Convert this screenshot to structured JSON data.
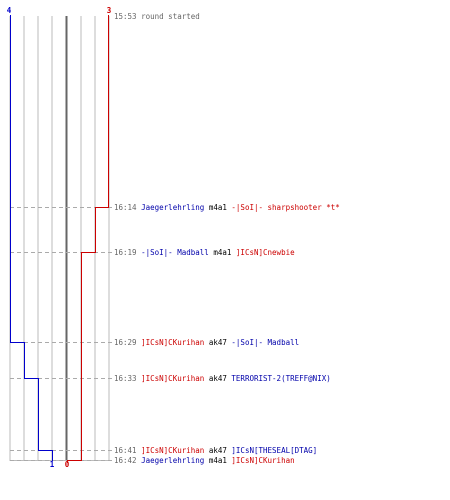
{
  "colors": {
    "team_blue": "#0000cc",
    "team_red": "#cc0000",
    "grid": "#bbbbbb",
    "midline": "#666666",
    "dash": "#aaaaaa"
  },
  "scores": {
    "blue_start": "4",
    "red_start": "3",
    "blue_end": "1",
    "red_end": "0"
  },
  "events": [
    {
      "time": "15:53",
      "note": "round started"
    },
    {
      "time": "16:14",
      "killer": "Jaegerlehrling",
      "killer_team": "blue",
      "weapon": "m4a1",
      "victim": "-|SoI|- sharpshooter *t*",
      "victim_team": "red"
    },
    {
      "time": "16:19",
      "killer": "-|SoI|- Madball",
      "killer_team": "blue",
      "weapon": "m4a1",
      "victim": "]ICsN]Cnewbie",
      "victim_team": "red"
    },
    {
      "time": "16:29",
      "killer": "]ICsN]CKurihan",
      "killer_team": "red",
      "weapon": "ak47",
      "victim": "-|SoI|- Madball",
      "victim_team": "blue"
    },
    {
      "time": "16:33",
      "killer": "]ICsN]CKurihan",
      "killer_team": "red",
      "weapon": "ak47",
      "victim": "TERRORIST-2(TREFF@NIX)",
      "victim_team": "blue"
    },
    {
      "time": "16:41",
      "killer": "]ICsN]CKurihan",
      "killer_team": "red",
      "weapon": "ak47",
      "victim": "]ICsN[THESEAL[DTAG]",
      "victim_team": "blue"
    },
    {
      "time": "16:42",
      "killer": "Jaegerlehrling",
      "killer_team": "blue",
      "weapon": "m4a1",
      "victim": "]ICsN]CKurihan",
      "victim_team": "red"
    }
  ]
}
